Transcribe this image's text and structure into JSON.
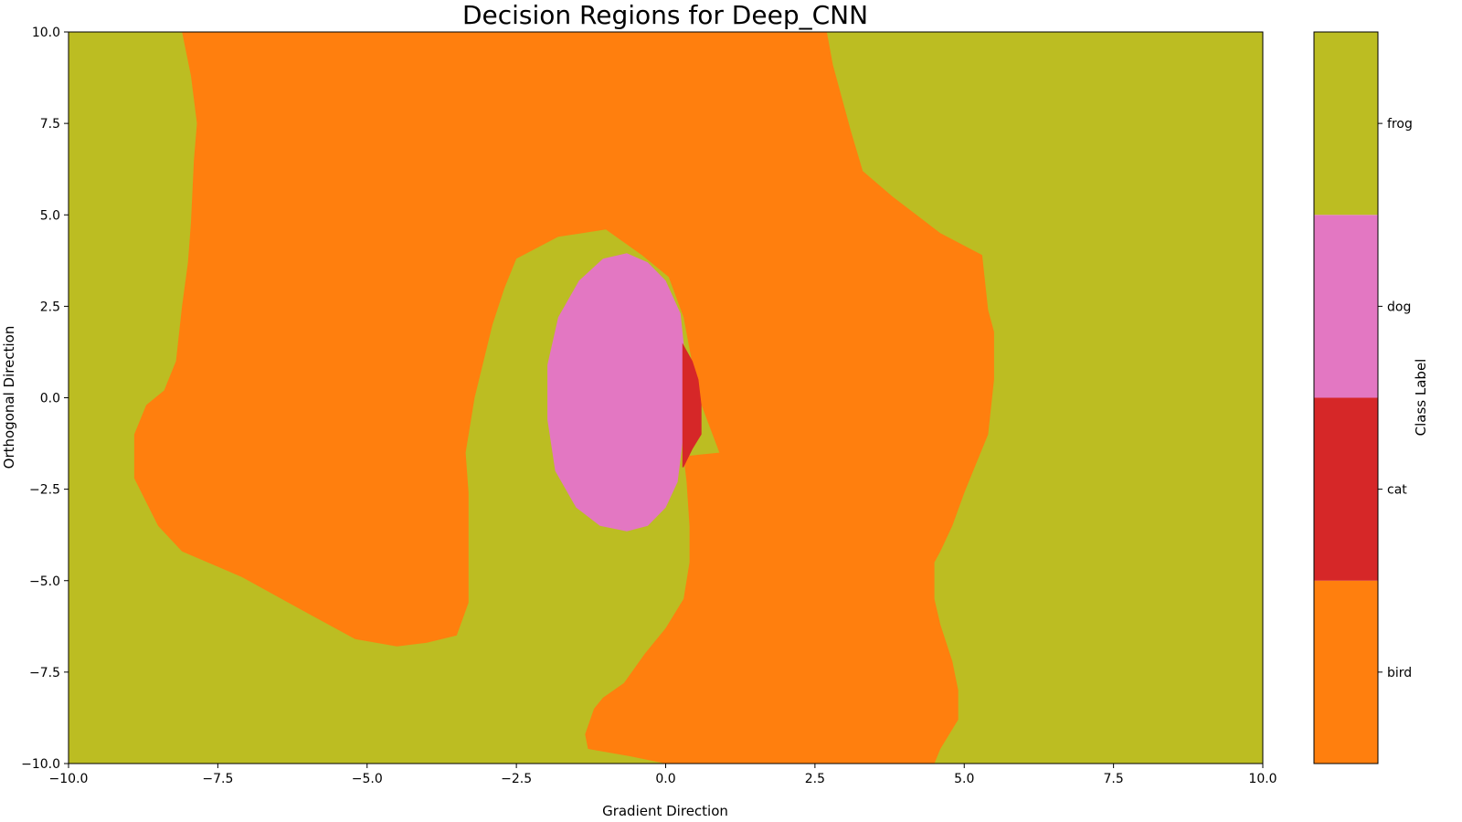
{
  "chart_data": {
    "type": "heatmap",
    "title": "Decision Regions for Deep_CNN",
    "xlabel": "Gradient Direction",
    "ylabel": "Orthogonal Direction",
    "xlim": [
      -10,
      10
    ],
    "ylim": [
      -10,
      10
    ],
    "xticks": [
      -10.0,
      -7.5,
      -5.0,
      -2.5,
      0.0,
      2.5,
      5.0,
      7.5,
      10.0
    ],
    "xtick_labels": [
      "−10.0",
      "−7.5",
      "−5.0",
      "−2.5",
      "0.0",
      "2.5",
      "5.0",
      "7.5",
      "10.0"
    ],
    "yticks": [
      -10.0,
      -7.5,
      -5.0,
      -2.5,
      0.0,
      2.5,
      5.0,
      7.5,
      10.0
    ],
    "ytick_labels": [
      "−10.0",
      "−7.5",
      "−5.0",
      "−2.5",
      "0.0",
      "2.5",
      "5.0",
      "7.5",
      "10.0"
    ],
    "grid": false,
    "classes": [
      {
        "name": "bird",
        "color": "#ff7f0e"
      },
      {
        "name": "cat",
        "color": "#d62728"
      },
      {
        "name": "dog",
        "color": "#e377c2"
      },
      {
        "name": "frog",
        "color": "#bcbd22"
      }
    ],
    "background_class": "frog",
    "regions": [
      {
        "class": "bird",
        "boundary": [
          [
            -8.1,
            10
          ],
          [
            2.7,
            10
          ],
          [
            2.8,
            9.1
          ],
          [
            3.1,
            7.3
          ],
          [
            3.3,
            6.2
          ],
          [
            3.8,
            5.5
          ],
          [
            4.2,
            5.0
          ],
          [
            4.6,
            4.5
          ],
          [
            5.3,
            3.9
          ],
          [
            5.4,
            2.4
          ],
          [
            5.5,
            1.8
          ],
          [
            5.5,
            0.5
          ],
          [
            5.4,
            -1.0
          ],
          [
            5.2,
            -1.8
          ],
          [
            5.0,
            -2.6
          ],
          [
            4.8,
            -3.5
          ],
          [
            4.6,
            -4.2
          ],
          [
            4.5,
            -4.5
          ],
          [
            4.5,
            -5.5
          ],
          [
            4.6,
            -6.2
          ],
          [
            4.8,
            -7.2
          ],
          [
            4.9,
            -8.0
          ],
          [
            4.9,
            -8.8
          ],
          [
            4.6,
            -9.6
          ],
          [
            4.5,
            -10
          ],
          [
            0.0,
            -10
          ],
          [
            -0.6,
            -9.8
          ],
          [
            -1.3,
            -9.6
          ],
          [
            -1.35,
            -9.2
          ],
          [
            -1.2,
            -8.5
          ],
          [
            -1.05,
            -8.2
          ],
          [
            -0.7,
            -7.8
          ],
          [
            -0.35,
            -7.0
          ],
          [
            0.0,
            -6.3
          ],
          [
            0.3,
            -5.5
          ],
          [
            0.4,
            -4.5
          ],
          [
            0.4,
            -3.5
          ],
          [
            0.35,
            -2.3
          ],
          [
            0.3,
            -1.6
          ],
          [
            0.9,
            -1.5
          ],
          [
            0.6,
            -0.2
          ],
          [
            0.45,
            0.9
          ],
          [
            0.3,
            2.2
          ],
          [
            0.05,
            3.3
          ],
          [
            -0.4,
            3.9
          ],
          [
            -1.0,
            4.6
          ],
          [
            -1.8,
            4.4
          ],
          [
            -2.5,
            3.8
          ],
          [
            -2.7,
            3.0
          ],
          [
            -2.9,
            2.0
          ],
          [
            -3.2,
            0.0
          ],
          [
            -3.35,
            -1.5
          ],
          [
            -3.3,
            -2.6
          ],
          [
            -3.3,
            -4.0
          ],
          [
            -3.3,
            -5.6
          ],
          [
            -3.5,
            -6.5
          ],
          [
            -4.0,
            -6.7
          ],
          [
            -4.5,
            -6.8
          ],
          [
            -5.2,
            -6.6
          ],
          [
            -6.1,
            -5.8
          ],
          [
            -7.1,
            -4.9
          ],
          [
            -8.1,
            -4.2
          ],
          [
            -8.5,
            -3.5
          ],
          [
            -8.9,
            -2.2
          ],
          [
            -8.9,
            -1.0
          ],
          [
            -8.7,
            -0.2
          ],
          [
            -8.4,
            0.2
          ],
          [
            -8.2,
            1.0
          ],
          [
            -8.1,
            2.5
          ],
          [
            -8.0,
            3.7
          ],
          [
            -7.95,
            4.8
          ],
          [
            -7.9,
            6.5
          ],
          [
            -7.85,
            7.5
          ],
          [
            -7.95,
            8.8
          ]
        ]
      },
      {
        "class": "dog",
        "boundary": [
          [
            -0.65,
            3.95
          ],
          [
            -0.3,
            3.7
          ],
          [
            0.0,
            3.2
          ],
          [
            0.25,
            2.3
          ],
          [
            0.32,
            1.2
          ],
          [
            0.3,
            -1.0
          ],
          [
            0.2,
            -2.3
          ],
          [
            0.0,
            -3.0
          ],
          [
            -0.3,
            -3.5
          ],
          [
            -0.65,
            -3.65
          ],
          [
            -1.1,
            -3.5
          ],
          [
            -1.5,
            -3.0
          ],
          [
            -1.85,
            -2.0
          ],
          [
            -1.98,
            -0.6
          ],
          [
            -1.98,
            0.9
          ],
          [
            -1.8,
            2.2
          ],
          [
            -1.45,
            3.2
          ],
          [
            -1.05,
            3.8
          ]
        ]
      },
      {
        "class": "cat",
        "boundary": [
          [
            0.28,
            1.5
          ],
          [
            0.45,
            1.0
          ],
          [
            0.55,
            0.5
          ],
          [
            0.6,
            -0.2
          ],
          [
            0.6,
            -1.0
          ],
          [
            0.45,
            -1.4
          ],
          [
            0.3,
            -1.9
          ],
          [
            0.28,
            -1.9
          ]
        ]
      }
    ]
  },
  "colorbar": {
    "label": "Class Label",
    "ticks": [
      "bird",
      "cat",
      "dog",
      "frog"
    ]
  }
}
